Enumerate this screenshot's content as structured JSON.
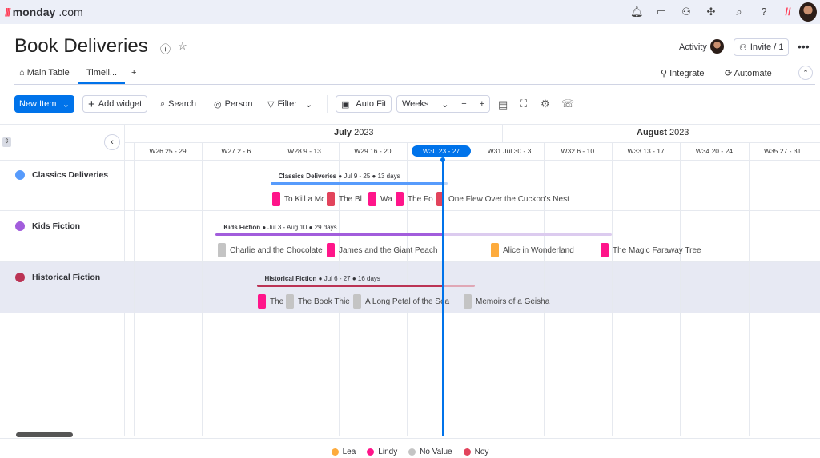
{
  "app": {
    "logo_text": "monday",
    "logo_suffix": ".com"
  },
  "board": {
    "title": "Book Deliveries",
    "activity_label": "Activity",
    "invite_label": "Invite / 1"
  },
  "tabs": [
    {
      "label": "Main Table"
    },
    {
      "label": "Timeli..."
    },
    {
      "label": "+"
    }
  ],
  "header_actions": {
    "integrate": "Integrate",
    "automate": "Automate"
  },
  "toolbar": {
    "new_item": "New Item",
    "add_widget": "Add widget",
    "search": "Search",
    "person": "Person",
    "filter": "Filter",
    "auto_fit": "Auto Fit",
    "zoom_select": "Weeks"
  },
  "months": [
    {
      "name": "July",
      "year": "2023"
    },
    {
      "name": "August",
      "year": "2023"
    }
  ],
  "weeks": [
    {
      "label": "W26 25 - 29",
      "start": "2023-06-25"
    },
    {
      "label": "W27 2 - 6",
      "start": "2023-07-02"
    },
    {
      "label": "W28 9 - 13",
      "start": "2023-07-09"
    },
    {
      "label": "W29 16 - 20",
      "start": "2023-07-16"
    },
    {
      "label": "W30 23 - 27",
      "start": "2023-07-23",
      "current": true
    },
    {
      "label": "W31 Jul 30 - 3",
      "start": "2023-07-30"
    },
    {
      "label": "W32 6 - 10",
      "start": "2023-08-06"
    },
    {
      "label": "W33 13 - 17",
      "start": "2023-08-13"
    },
    {
      "label": "W34 20 - 24",
      "start": "2023-08-20"
    },
    {
      "label": "W35 27 - 31",
      "start": "2023-08-27"
    }
  ],
  "today": "2023-07-25",
  "groups": [
    {
      "name": "Classics Deliveries",
      "color": "#579bfc",
      "light": "#bcd6f7",
      "start": "2023-07-09",
      "end": "2023-07-25",
      "range": "Jul 9 - 25",
      "duration": "13 days",
      "items": [
        {
          "name": "To Kill a Mc",
          "color": "#ff158a"
        },
        {
          "name": "The Bl",
          "color": "#e2445c"
        },
        {
          "name": "Wa",
          "color": "#ff158a"
        },
        {
          "name": "The Fo",
          "color": "#ff158a"
        },
        {
          "name": "One Flew Over the Cuckoo's Nest",
          "color": "#e2445c"
        }
      ]
    },
    {
      "name": "Kids Fiction",
      "color": "#a25ddc",
      "light": "#dccbef",
      "start": "2023-07-03",
      "end": "2023-08-10",
      "range": "Jul 3 - Aug 10",
      "duration": "29 days",
      "items": [
        {
          "name": "Charlie and the Chocolate",
          "color": "#c4c4c4"
        },
        {
          "name": "James and the Giant Peach",
          "color": "#ff158a"
        },
        {
          "name": "Alice in Wonderland",
          "color": "#fdab3d"
        },
        {
          "name": "The Magic Faraway Tree",
          "color": "#ff158a"
        }
      ]
    },
    {
      "name": "Historical Fiction",
      "color": "#bb3354",
      "light": "#e0a7b5",
      "start": "2023-07-06",
      "end": "2023-07-27",
      "range": "Jul 6 - 27",
      "duration": "16 days",
      "items": [
        {
          "name": "The",
          "color": "#ff158a"
        },
        {
          "name": "The Book Thie",
          "color": "#c4c4c4"
        },
        {
          "name": "A Long Petal of the Sea",
          "color": "#c4c4c4"
        },
        {
          "name": "Memoirs of a Geisha",
          "color": "#c4c4c4"
        }
      ]
    }
  ],
  "legend": [
    {
      "name": "Lea",
      "color": "#fdab3d"
    },
    {
      "name": "Lindy",
      "color": "#ff158a"
    },
    {
      "name": "No Value",
      "color": "#c4c4c4"
    },
    {
      "name": "Noy",
      "color": "#e2445c"
    }
  ]
}
